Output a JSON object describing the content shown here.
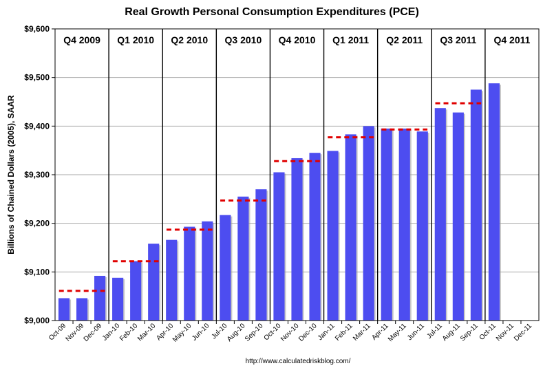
{
  "chart_data": {
    "type": "bar",
    "title": "Real Growth Personal Consumption Expenditures (PCE)",
    "ylabel": "Billions of Chained Dollars (2005), SAAR",
    "xlabel": "",
    "source": "http://www.calculatedriskblog.com/",
    "ylim": [
      9000,
      9600
    ],
    "yticks": [
      9000,
      9100,
      9200,
      9300,
      9400,
      9500,
      9600
    ],
    "ytick_labels": [
      "$9,000",
      "$9,100",
      "$9,200",
      "$9,300",
      "$9,400",
      "$9,500",
      "$9,600"
    ],
    "grid": true,
    "bar_color": "#4d4df0",
    "average_line_color": "#e00000",
    "categories": [
      "Oct-09",
      "Nov-09",
      "Dec-09",
      "Jan-10",
      "Feb-10",
      "Mar-10",
      "Apr-10",
      "May-10",
      "Jun-10",
      "Jul-10",
      "Aug-10",
      "Sep-10",
      "Oct-10",
      "Nov-10",
      "Dec-10",
      "Jan-11",
      "Feb-11",
      "Mar-11",
      "Apr-11",
      "May-11",
      "Jun-11",
      "Jul-11",
      "Aug-11",
      "Sep-11",
      "Oct-11",
      "Nov-11",
      "Dec-11"
    ],
    "values": [
      9046,
      9046,
      9092,
      9088,
      9122,
      9158,
      9166,
      9193,
      9204,
      9217,
      9255,
      9270,
      9305,
      9334,
      9345,
      9349,
      9383,
      9400,
      9395,
      9395,
      9389,
      9437,
      9428,
      9475,
      9488,
      null,
      null
    ],
    "quarters": [
      {
        "label": "Q4 2009",
        "average": 9061
      },
      {
        "label": "Q1 2010",
        "average": 9122
      },
      {
        "label": "Q2 2010",
        "average": 9187
      },
      {
        "label": "Q3 2010",
        "average": 9247
      },
      {
        "label": "Q4 2010",
        "average": 9328
      },
      {
        "label": "Q1 2011",
        "average": 9377
      },
      {
        "label": "Q2 2011",
        "average": 9393
      },
      {
        "label": "Q3 2011",
        "average": 9447
      },
      {
        "label": "Q4 2011",
        "average": null
      }
    ]
  }
}
